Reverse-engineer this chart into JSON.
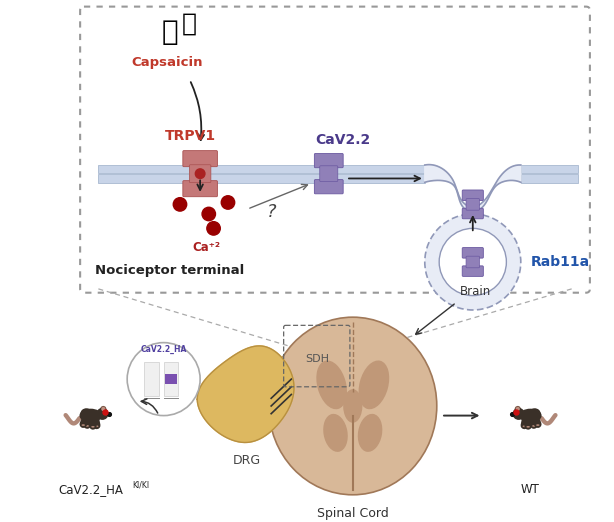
{
  "bg_color": "#ffffff",
  "membrane_color": "#c8d4e8",
  "membrane_border": "#a8b8d0",
  "trpv1_color": "#c47878",
  "trpv1_dark": "#a85050",
  "trpv1_label": "TRPV1",
  "trpv1_label_color": "#c0392b",
  "cav22_color": "#9080b8",
  "cav22_dark": "#6a58a0",
  "cav22_label": "CaV2.2",
  "cav22_label_color": "#4a3a8a",
  "rab11a_label": "Rab11a",
  "rab11a_label_color": "#2255aa",
  "capsaicin_label": "Capsaicin",
  "capsaicin_label_color": "#c0392b",
  "ca2_label": "Ca⁺²",
  "ca2_label_color": "#aa2020",
  "ca2_dot_color": "#990000",
  "nociceptor_label": "Nociceptor terminal",
  "drg_label": "DRG",
  "brain_label": "Brain",
  "sdh_label": "SDH",
  "spinal_cord_label": "Spinal Cord",
  "mouse_ki_label": "CaV2.2_HA",
  "mouse_ki_super": "KI/KI",
  "mouse_wt_label": "WT",
  "vesicle_fill": "#e8ecf6",
  "vesicle_line": "#9098b8",
  "endosome_fill": "#e8ecf6",
  "endosome_line": "#9098b8",
  "spinal_fill": "#d8b898",
  "spinal_dark": "#c09878",
  "spinal_darker": "#b08868",
  "spinal_line": "#a07858",
  "drg_fill": "#ddb860",
  "drg_line": "#b89040",
  "mouse_body": "#3a3028",
  "mouse_ear": "#7a5848",
  "mouse_pink": "#c09080",
  "mouse_tail": "#b08878"
}
